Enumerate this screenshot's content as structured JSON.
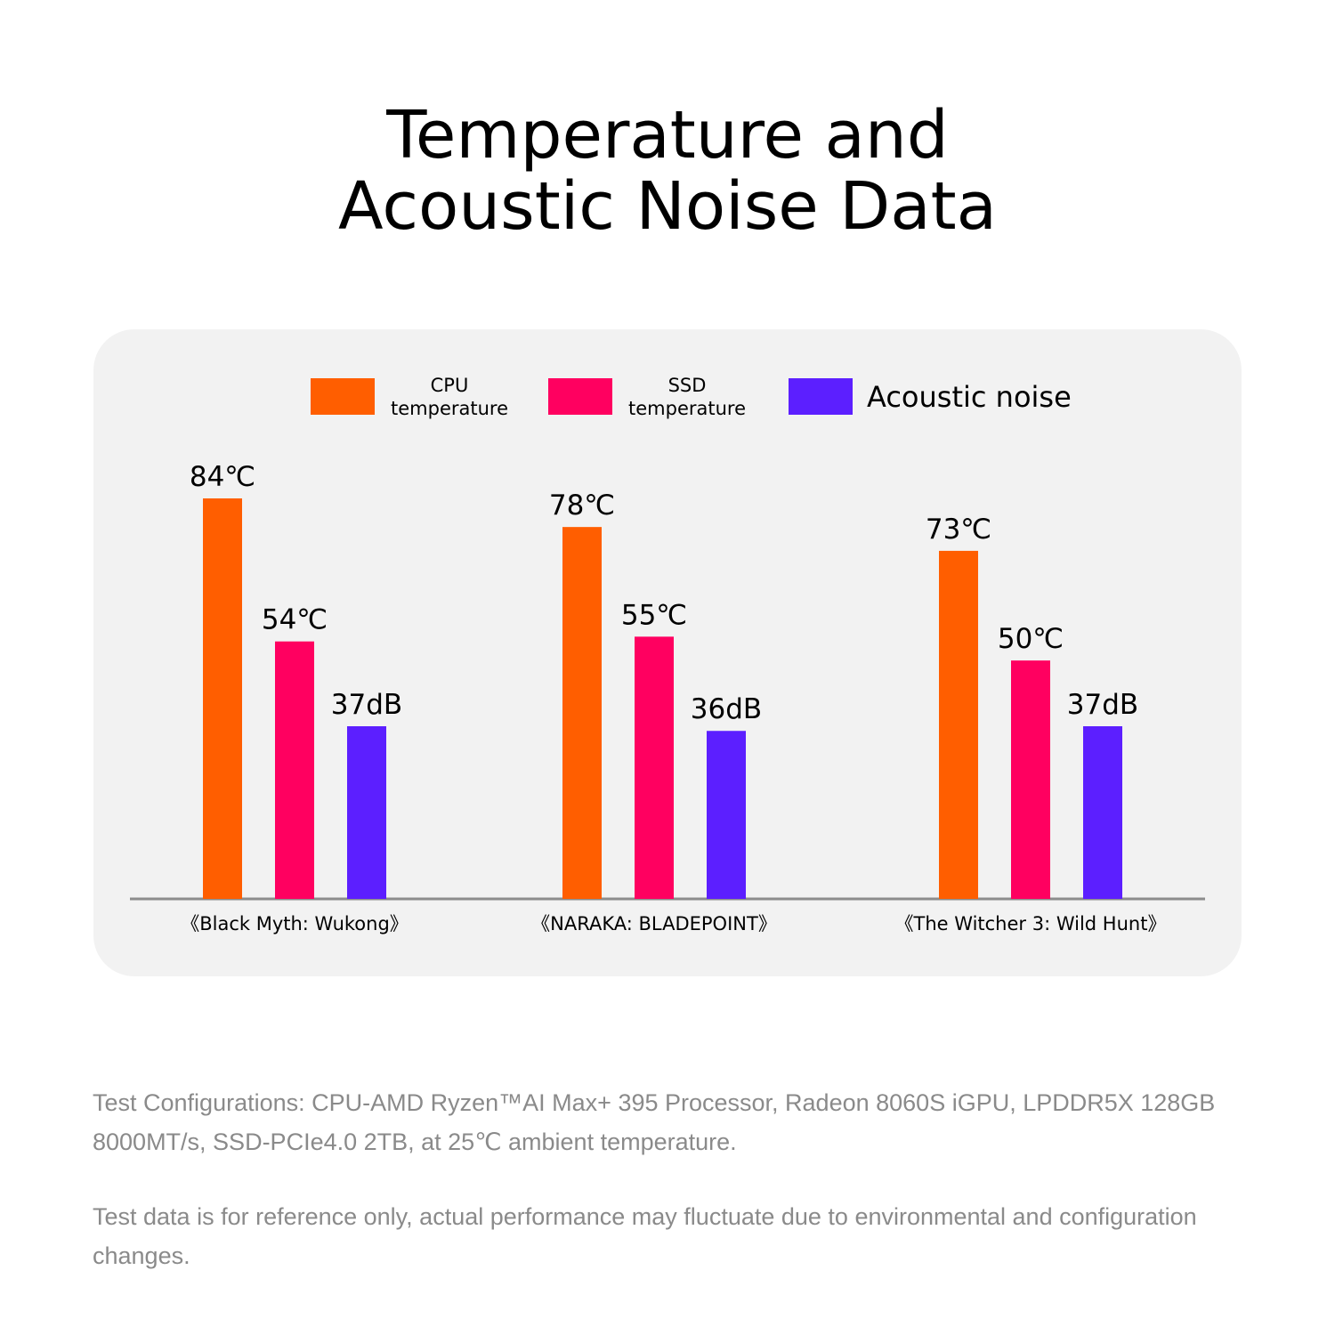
{
  "title": {
    "line1": "Temperature and",
    "line2": "Acoustic Noise Data"
  },
  "legend": [
    {
      "line1": "CPU",
      "line2": "temperature",
      "color": "#ff5e00"
    },
    {
      "line1": "SSD",
      "line2": "temperature",
      "color": "#ff0060"
    },
    {
      "line1": "Acoustic noise",
      "line2": "",
      "color": "#5c1fff"
    }
  ],
  "chart_data": {
    "type": "bar",
    "categories": [
      "《Black Myth: Wukong》",
      "《NARAKA: BLADEPOINT》",
      "《The Witcher 3: Wild Hunt》"
    ],
    "series": [
      {
        "name": "CPU temperature",
        "color": "#ff5e00",
        "values": [
          84,
          78,
          73
        ],
        "labels": [
          "84℃",
          "78℃",
          "73℃"
        ]
      },
      {
        "name": "SSD temperature",
        "color": "#ff0060",
        "values": [
          54,
          55,
          50
        ],
        "labels": [
          "54℃",
          "55℃",
          "50℃"
        ]
      },
      {
        "name": "Acoustic noise",
        "color": "#5c1fff",
        "values": [
          37,
          36,
          37
        ],
        "labels": [
          "37dB",
          "36dB",
          "37dB"
        ]
      }
    ],
    "grid": false,
    "legend_position": "top"
  },
  "footnotes": [
    "Test Configurations: CPU-AMD Ryzen™AI Max+ 395 Processor, Radeon 8060S iGPU, LPDDR5X 128GB 8000MT/s, SSD-PCIe4.0 2TB, at 25℃ ambient temperature.",
    "Test data is for reference only, actual performance may fluctuate due to environmental and configuration changes."
  ]
}
